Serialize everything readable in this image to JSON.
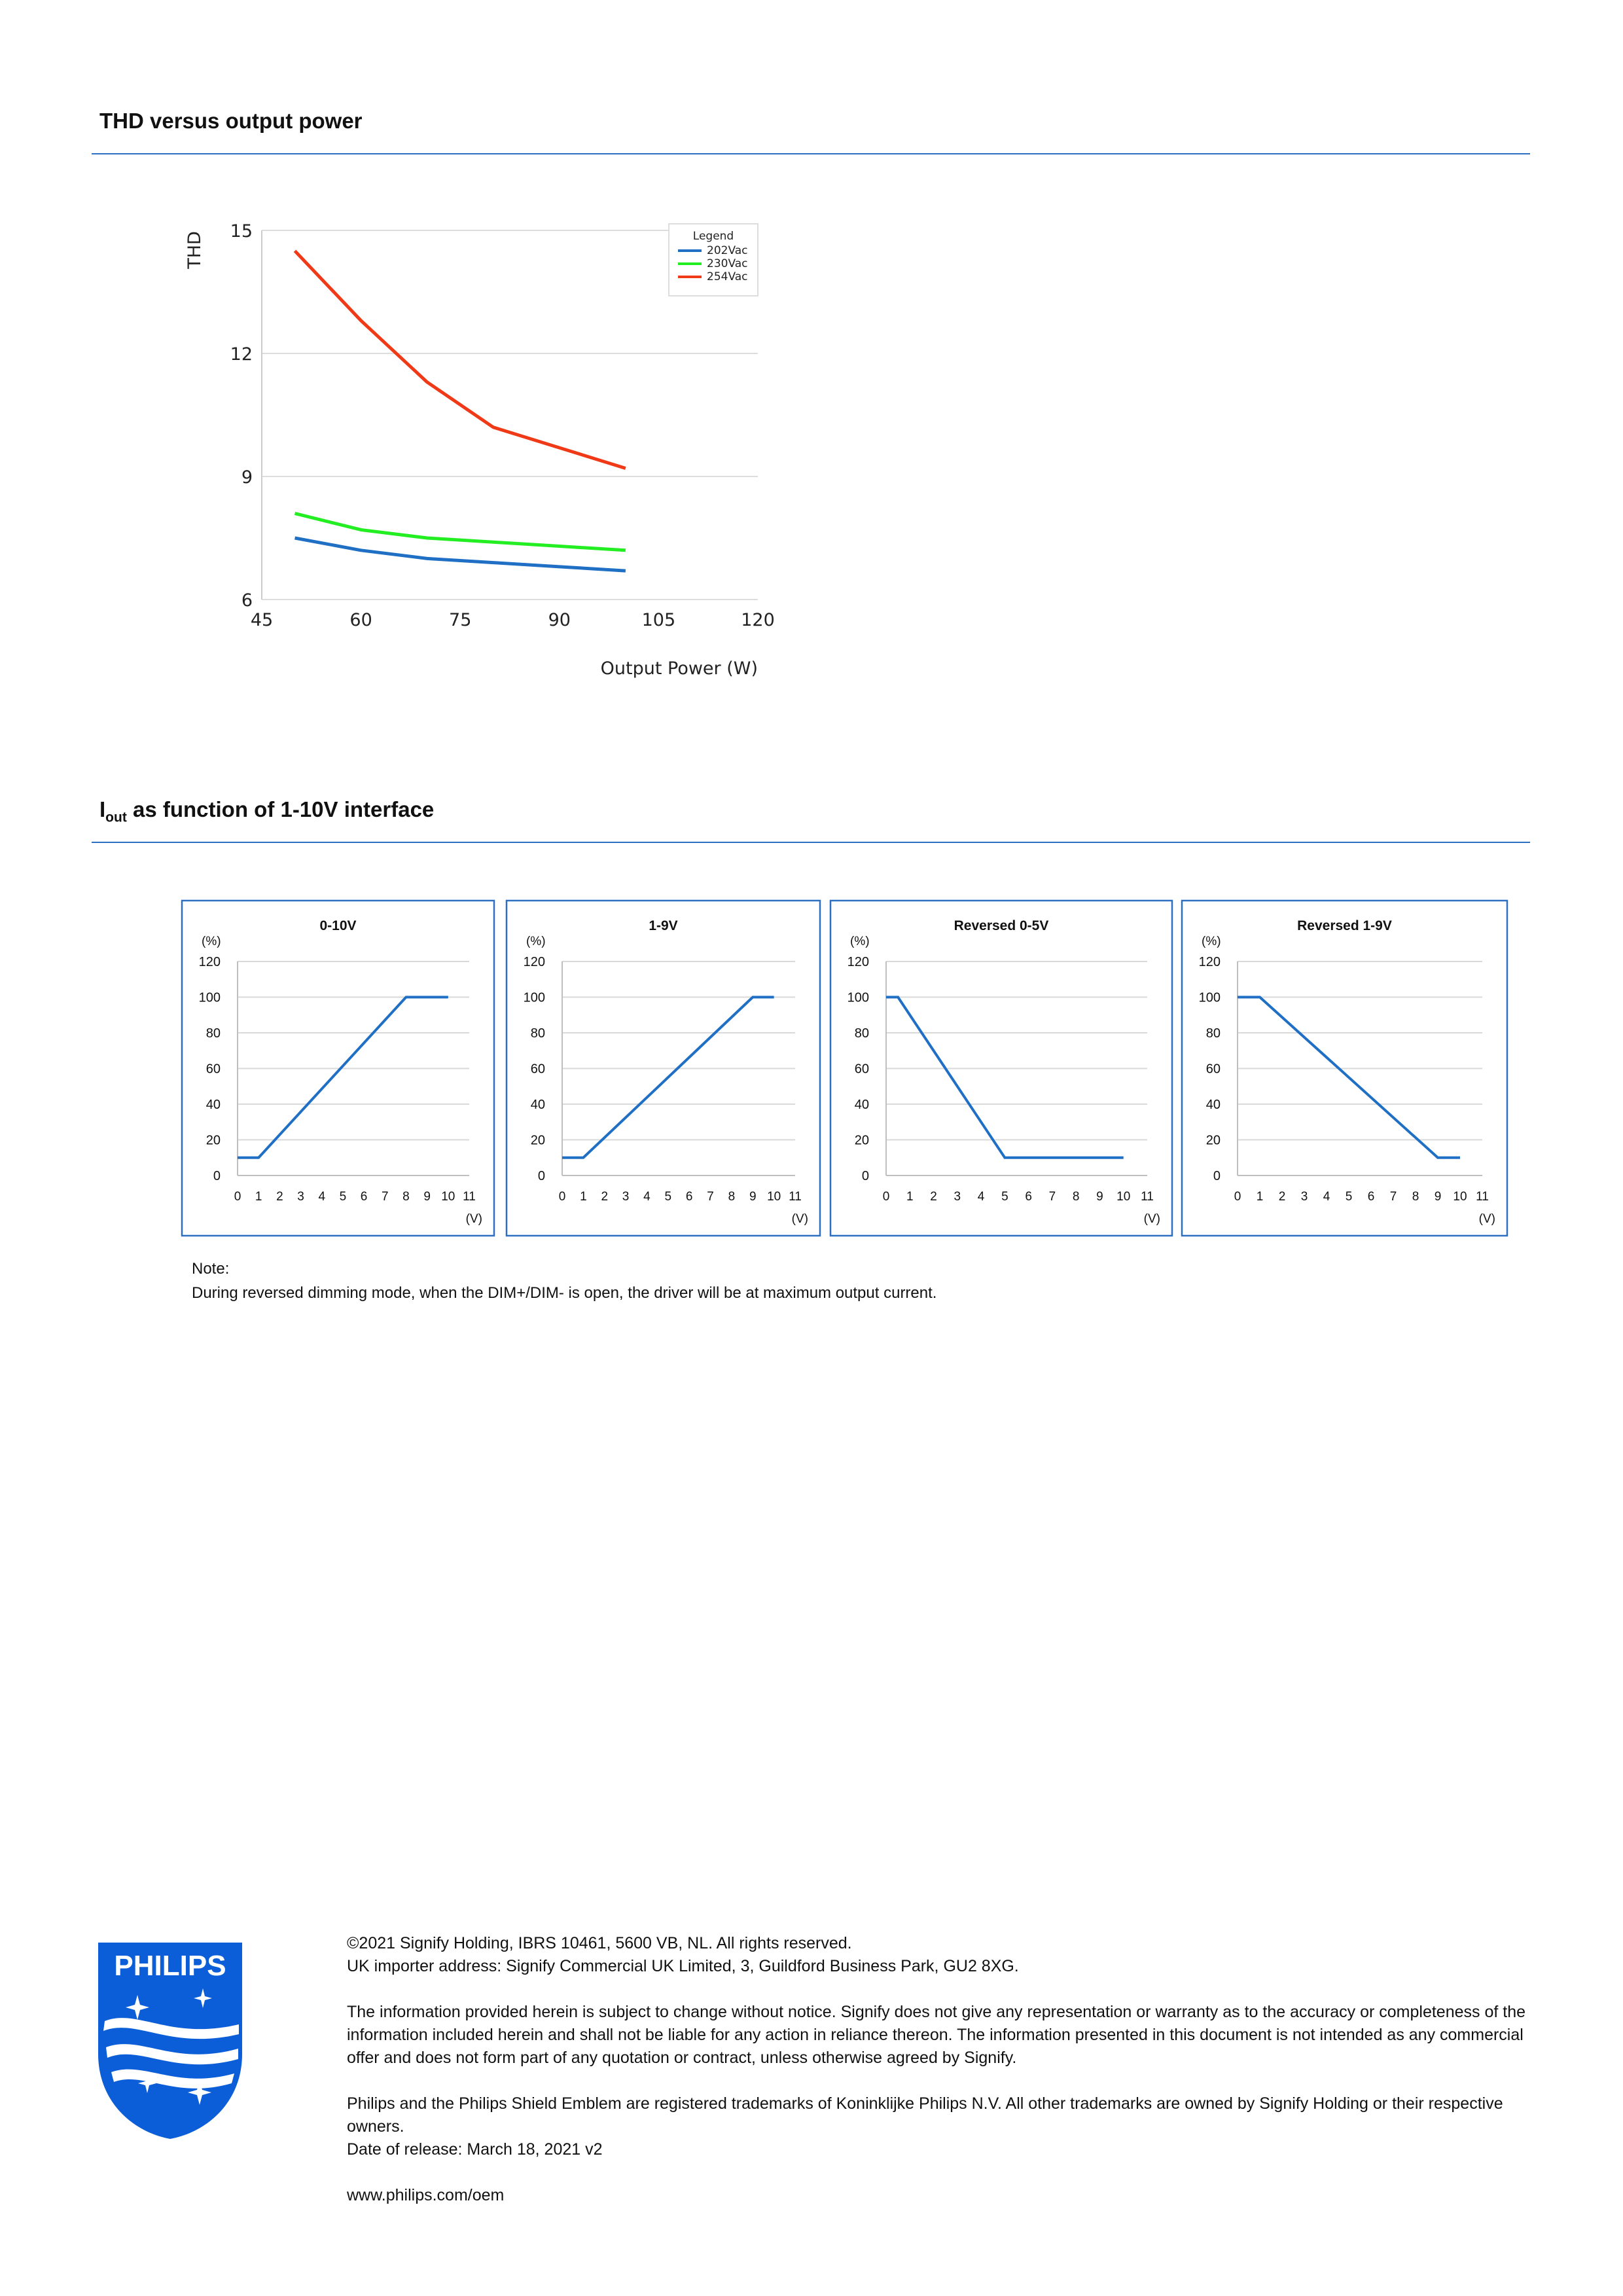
{
  "sections": {
    "thd_title": "THD versus output power",
    "iout_title_main": "I",
    "iout_title_sub": "out",
    "iout_title_rest": " as function of 1-10V interface"
  },
  "chart_data": [
    {
      "type": "line",
      "title": "",
      "xlabel": "Output Power (W)",
      "ylabel": "THD",
      "xlim": [
        45,
        120
      ],
      "ylim": [
        6,
        15
      ],
      "xticks": [
        "45",
        "60",
        "75",
        "90",
        "105",
        "120"
      ],
      "yticks": [
        "6",
        "9",
        "12",
        "15"
      ],
      "grid": true,
      "legend": {
        "title": "Legend",
        "placement": "top-right"
      },
      "series": [
        {
          "name": "202Vac",
          "color": "#1f6fc5",
          "x": [
            50,
            60,
            70,
            80,
            90,
            100
          ],
          "y": [
            7.5,
            7.2,
            7.0,
            6.9,
            6.8,
            6.7
          ]
        },
        {
          "name": "230Vac",
          "color": "#22ee22",
          "x": [
            50,
            60,
            70,
            80,
            90,
            100
          ],
          "y": [
            8.1,
            7.7,
            7.5,
            7.4,
            7.3,
            7.2
          ]
        },
        {
          "name": "254Vac",
          "color": "#f03a17",
          "x": [
            50,
            60,
            70,
            80,
            90,
            100
          ],
          "y": [
            14.5,
            12.8,
            11.3,
            10.2,
            9.7,
            9.2
          ]
        }
      ]
    },
    {
      "type": "line",
      "title": "0-10V",
      "ylabel": "(%)",
      "xlabel": "(V)",
      "xlim": [
        0,
        11
      ],
      "ylim": [
        0,
        120
      ],
      "xticks": [
        "0",
        "1",
        "2",
        "3",
        "4",
        "5",
        "6",
        "7",
        "8",
        "9",
        "10",
        "11"
      ],
      "yticks": [
        "0",
        "20",
        "40",
        "60",
        "80",
        "100",
        "120"
      ],
      "series": [
        {
          "color": "#1f6fc5",
          "x": [
            0,
            1,
            8,
            10
          ],
          "y": [
            10,
            10,
            100,
            100
          ]
        }
      ]
    },
    {
      "type": "line",
      "title": "1-9V",
      "ylabel": "(%)",
      "xlabel": "(V)",
      "xlim": [
        0,
        11
      ],
      "ylim": [
        0,
        120
      ],
      "xticks": [
        "0",
        "1",
        "2",
        "3",
        "4",
        "5",
        "6",
        "7",
        "8",
        "9",
        "10",
        "11"
      ],
      "yticks": [
        "0",
        "20",
        "40",
        "60",
        "80",
        "100",
        "120"
      ],
      "series": [
        {
          "color": "#1f6fc5",
          "x": [
            0,
            1,
            9,
            10
          ],
          "y": [
            10,
            10,
            100,
            100
          ]
        }
      ]
    },
    {
      "type": "line",
      "title": "Reversed 0-5V",
      "ylabel": "(%)",
      "xlabel": "(V)",
      "xlim": [
        0,
        11
      ],
      "ylim": [
        0,
        120
      ],
      "xticks": [
        "0",
        "1",
        "2",
        "3",
        "4",
        "5",
        "6",
        "7",
        "8",
        "9",
        "10",
        "11"
      ],
      "yticks": [
        "0",
        "20",
        "40",
        "60",
        "80",
        "100",
        "120"
      ],
      "series": [
        {
          "color": "#1f6fc5",
          "x": [
            0,
            0.5,
            5,
            10
          ],
          "y": [
            100,
            100,
            10,
            10
          ]
        }
      ]
    },
    {
      "type": "line",
      "title": "Reversed 1-9V",
      "ylabel": "(%)",
      "xlabel": "(V)",
      "xlim": [
        0,
        11
      ],
      "ylim": [
        0,
        120
      ],
      "xticks": [
        "0",
        "1",
        "2",
        "3",
        "4",
        "5",
        "6",
        "7",
        "8",
        "9",
        "10",
        "11"
      ],
      "yticks": [
        "0",
        "20",
        "40",
        "60",
        "80",
        "100",
        "120"
      ],
      "series": [
        {
          "color": "#1f6fc5",
          "x": [
            0,
            1,
            9,
            10
          ],
          "y": [
            100,
            100,
            10,
            10
          ]
        }
      ]
    }
  ],
  "note": {
    "label": "Note:",
    "text": "During reversed dimming mode, when the DIM+/DIM- is open, the driver will be at maximum output current."
  },
  "footer": {
    "copyright": "©2021 Signify Holding, IBRS 10461, 5600 VB, NL. All rights reserved.",
    "importer": "UK importer address: Signify Commercial UK Limited, 3, Guildford Business Park, GU2 8XG.",
    "disclaimer": "The information provided herein is subject to change without notice. Signify does not give any representation or warranty as to the accuracy or completeness of the information included herein and shall not be liable for any action in reliance thereon. The information presented in this document is not intended as any commercial offer and does not form part of any quotation or contract, unless otherwise agreed by Signify.",
    "trademarks": "Philips and the Philips Shield Emblem are registered trademarks of Koninklijke Philips N.V. All other trademarks are owned by Signify Holding or their respective owners.",
    "release": "Date of release: March 18, 2021 v2",
    "website": "www.philips.com/oem"
  },
  "logo": {
    "text": "PHILIPS",
    "color": "#0b5ed7"
  }
}
